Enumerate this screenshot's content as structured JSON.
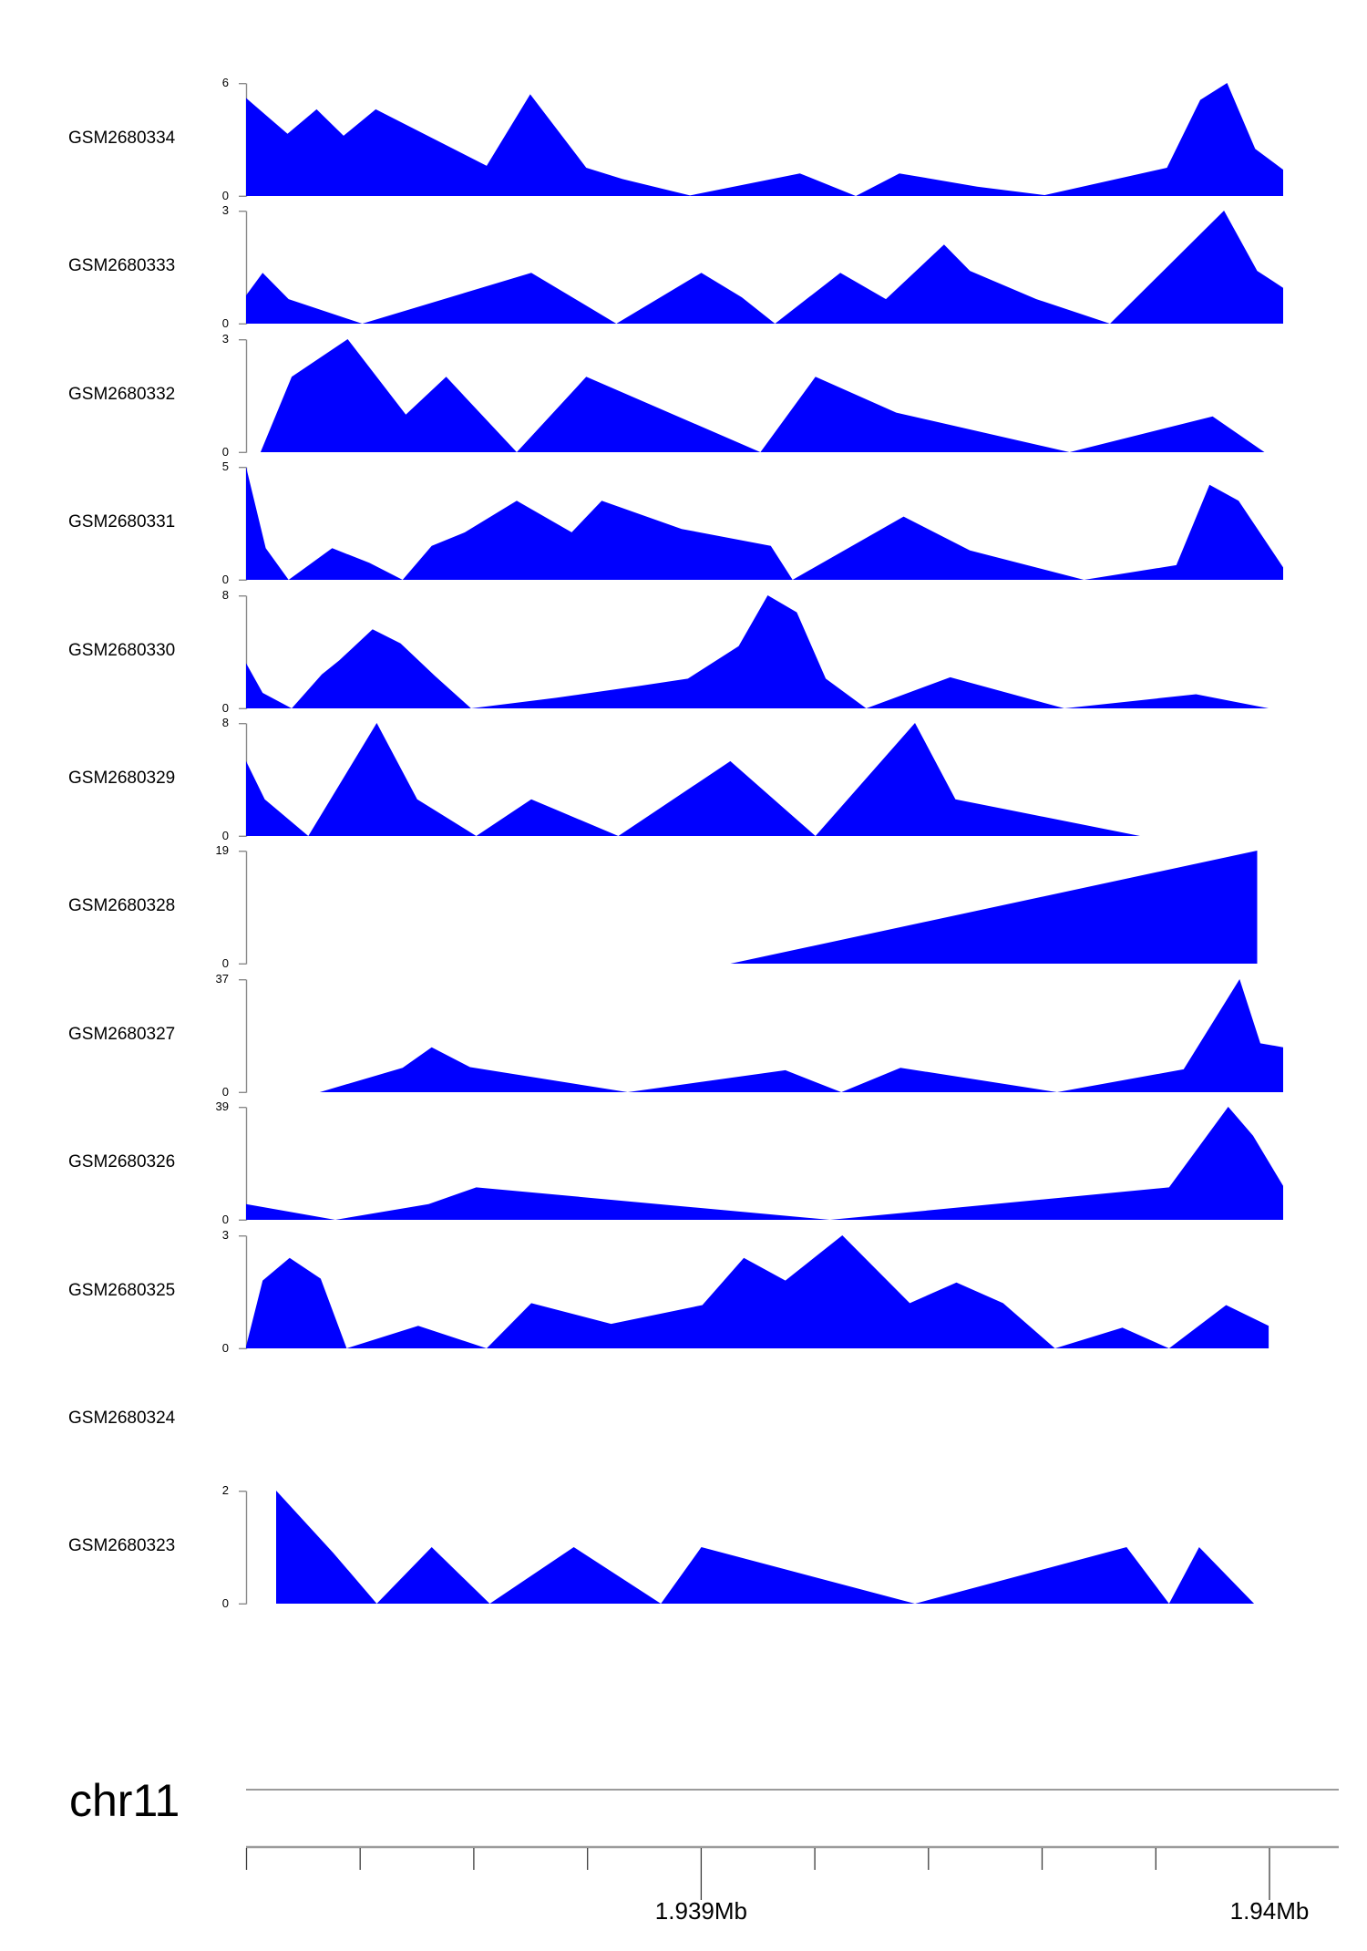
{
  "figure": {
    "background_color": "#ffffff",
    "area_fill_color": "#0000ff",
    "axis_line_color": "#8a8a8a",
    "ruler_line_color": "#9b9b9b",
    "ruler_tick_color": "#3c3c3c",
    "text_color": "#000000"
  },
  "chart_data": {
    "type": "area",
    "description": "Genome browser coverage tracks, blue filled area per GSM sample",
    "legend_position": "left-labels",
    "grid": false,
    "tracks": [
      {
        "label": "GSM2680334",
        "ymin": 0,
        "ymax": 6,
        "points": [
          [
            0,
            5.2
          ],
          [
            0.04,
            3.3
          ],
          [
            0.068,
            4.6
          ],
          [
            0.094,
            3.2
          ],
          [
            0.125,
            4.6
          ],
          [
            0.232,
            1.6
          ],
          [
            0.274,
            5.4
          ],
          [
            0.328,
            1.5
          ],
          [
            0.363,
            0.9
          ],
          [
            0.428,
            0.03
          ],
          [
            0.534,
            1.2
          ],
          [
            0.588,
            0
          ],
          [
            0.63,
            1.2
          ],
          [
            0.705,
            0.5
          ],
          [
            0.77,
            0.05
          ],
          [
            0.888,
            1.5
          ],
          [
            0.92,
            5.1
          ],
          [
            0.946,
            6
          ],
          [
            0.973,
            2.5
          ],
          [
            1,
            1.4
          ]
        ]
      },
      {
        "label": "GSM2680333",
        "ymin": 0,
        "ymax": 3,
        "points": [
          [
            0,
            0.75
          ],
          [
            0.016,
            1.35
          ],
          [
            0.041,
            0.65
          ],
          [
            0.112,
            0
          ],
          [
            0.275,
            1.35
          ],
          [
            0.357,
            0
          ],
          [
            0.439,
            1.35
          ],
          [
            0.478,
            0.7
          ],
          [
            0.51,
            0
          ],
          [
            0.573,
            1.35
          ],
          [
            0.617,
            0.65
          ],
          [
            0.673,
            2.1
          ],
          [
            0.698,
            1.4
          ],
          [
            0.762,
            0.65
          ],
          [
            0.833,
            0
          ],
          [
            0.943,
            3
          ],
          [
            0.975,
            1.4
          ],
          [
            1,
            0.95
          ]
        ]
      },
      {
        "label": "GSM2680332",
        "ymin": 0,
        "ymax": 3,
        "points": [
          [
            0.014,
            0
          ],
          [
            0.044,
            2
          ],
          [
            0.098,
            3
          ],
          [
            0.154,
            1
          ],
          [
            0.193,
            2
          ],
          [
            0.261,
            0
          ],
          [
            0.328,
            2
          ],
          [
            0.496,
            0
          ],
          [
            0.549,
            2
          ],
          [
            0.627,
            1.05
          ],
          [
            0.794,
            0
          ],
          [
            0.932,
            0.95
          ],
          [
            0.982,
            0
          ]
        ]
      },
      {
        "label": "GSM2680331",
        "ymin": 0,
        "ymax": 5,
        "points": [
          [
            0,
            5
          ],
          [
            0.019,
            1.4
          ],
          [
            0.041,
            0
          ],
          [
            0.083,
            1.4
          ],
          [
            0.119,
            0.75
          ],
          [
            0.151,
            0
          ],
          [
            0.179,
            1.5
          ],
          [
            0.211,
            2.1
          ],
          [
            0.261,
            3.5
          ],
          [
            0.314,
            2.1
          ],
          [
            0.343,
            3.5
          ],
          [
            0.42,
            2.25
          ],
          [
            0.506,
            1.5
          ],
          [
            0.527,
            0
          ],
          [
            0.634,
            2.8
          ],
          [
            0.698,
            1.3
          ],
          [
            0.808,
            0
          ],
          [
            0.897,
            0.65
          ],
          [
            0.929,
            4.2
          ],
          [
            0.957,
            3.5
          ],
          [
            1,
            0.55
          ]
        ]
      },
      {
        "label": "GSM2680330",
        "ymin": 0,
        "ymax": 8,
        "points": [
          [
            0,
            3.2
          ],
          [
            0.016,
            1.1
          ],
          [
            0.044,
            0
          ],
          [
            0.073,
            2.4
          ],
          [
            0.09,
            3.4
          ],
          [
            0.122,
            5.6
          ],
          [
            0.149,
            4.6
          ],
          [
            0.182,
            2.3
          ],
          [
            0.217,
            0
          ],
          [
            0.299,
            0.75
          ],
          [
            0.38,
            1.6
          ],
          [
            0.426,
            2.1
          ],
          [
            0.475,
            4.4
          ],
          [
            0.503,
            8
          ],
          [
            0.531,
            6.8
          ],
          [
            0.559,
            2.1
          ],
          [
            0.598,
            0
          ],
          [
            0.679,
            2.2
          ],
          [
            0.789,
            0
          ],
          [
            0.916,
            1
          ],
          [
            0.986,
            0
          ]
        ]
      },
      {
        "label": "GSM2680329",
        "ymin": 0,
        "ymax": 8,
        "points": [
          [
            0,
            5.3
          ],
          [
            0.018,
            2.6
          ],
          [
            0.06,
            0
          ],
          [
            0.126,
            8
          ],
          [
            0.165,
            2.6
          ],
          [
            0.222,
            0
          ],
          [
            0.275,
            2.6
          ],
          [
            0.359,
            0
          ],
          [
            0.467,
            5.3
          ],
          [
            0.549,
            0
          ],
          [
            0.645,
            8
          ],
          [
            0.684,
            2.6
          ],
          [
            0.862,
            0
          ]
        ]
      },
      {
        "label": "GSM2680328",
        "ymin": 0,
        "ymax": 19,
        "points": [
          [
            0.467,
            0
          ],
          [
            0.975,
            19
          ]
        ]
      },
      {
        "label": "GSM2680327",
        "ymin": 0,
        "ymax": 37,
        "points": [
          [
            0.071,
            0
          ],
          [
            0.151,
            8
          ],
          [
            0.179,
            14.7
          ],
          [
            0.216,
            8.2
          ],
          [
            0.368,
            0
          ],
          [
            0.52,
            7.2
          ],
          [
            0.574,
            0
          ],
          [
            0.631,
            8
          ],
          [
            0.782,
            0
          ],
          [
            0.904,
            7.5
          ],
          [
            0.958,
            37
          ],
          [
            0.978,
            16
          ],
          [
            1,
            14.7
          ]
        ]
      },
      {
        "label": "GSM2680326",
        "ymin": 0,
        "ymax": 39,
        "points": [
          [
            0,
            5.4
          ],
          [
            0.086,
            0
          ],
          [
            0.176,
            5.4
          ],
          [
            0.222,
            11.2
          ],
          [
            0.563,
            0
          ],
          [
            0.89,
            11.2
          ],
          [
            0.947,
            39
          ],
          [
            0.971,
            29
          ],
          [
            1,
            11.7
          ]
        ]
      },
      {
        "label": "GSM2680325",
        "ymin": 0,
        "ymax": 3,
        "points": [
          [
            0,
            0.05
          ],
          [
            0.016,
            1.8
          ],
          [
            0.042,
            2.4
          ],
          [
            0.072,
            1.85
          ],
          [
            0.097,
            0
          ],
          [
            0.166,
            0.6
          ],
          [
            0.232,
            0
          ],
          [
            0.275,
            1.2
          ],
          [
            0.352,
            0.65
          ],
          [
            0.44,
            1.15
          ],
          [
            0.48,
            2.4
          ],
          [
            0.52,
            1.8
          ],
          [
            0.575,
            3
          ],
          [
            0.64,
            1.2
          ],
          [
            0.685,
            1.75
          ],
          [
            0.73,
            1.2
          ],
          [
            0.78,
            0
          ],
          [
            0.845,
            0.55
          ],
          [
            0.89,
            0
          ],
          [
            0.945,
            1.15
          ],
          [
            0.986,
            0.6
          ]
        ]
      },
      {
        "label": "GSM2680324",
        "ymin": null,
        "ymax": null,
        "points": []
      },
      {
        "label": "GSM2680323",
        "ymin": 0,
        "ymax": 2,
        "points": [
          [
            0.029,
            2
          ],
          [
            0.084,
            0.9
          ],
          [
            0.126,
            0
          ],
          [
            0.179,
            1
          ],
          [
            0.235,
            0
          ],
          [
            0.316,
            1
          ],
          [
            0.4,
            0
          ],
          [
            0.439,
            1
          ],
          [
            0.645,
            0
          ],
          [
            0.849,
            1
          ],
          [
            0.89,
            0
          ],
          [
            0.919,
            1
          ],
          [
            0.972,
            0
          ]
        ]
      }
    ],
    "x_axis": {
      "chromosome": "chr11",
      "tick_start_mb": 1.9382,
      "tick_step_mb": 0.0002,
      "tick_count": 10,
      "labeled_ticks": [
        {
          "mb": 1.939,
          "label": "1.939Mb"
        },
        {
          "mb": 1.94,
          "label": "1.94Mb"
        }
      ]
    }
  }
}
